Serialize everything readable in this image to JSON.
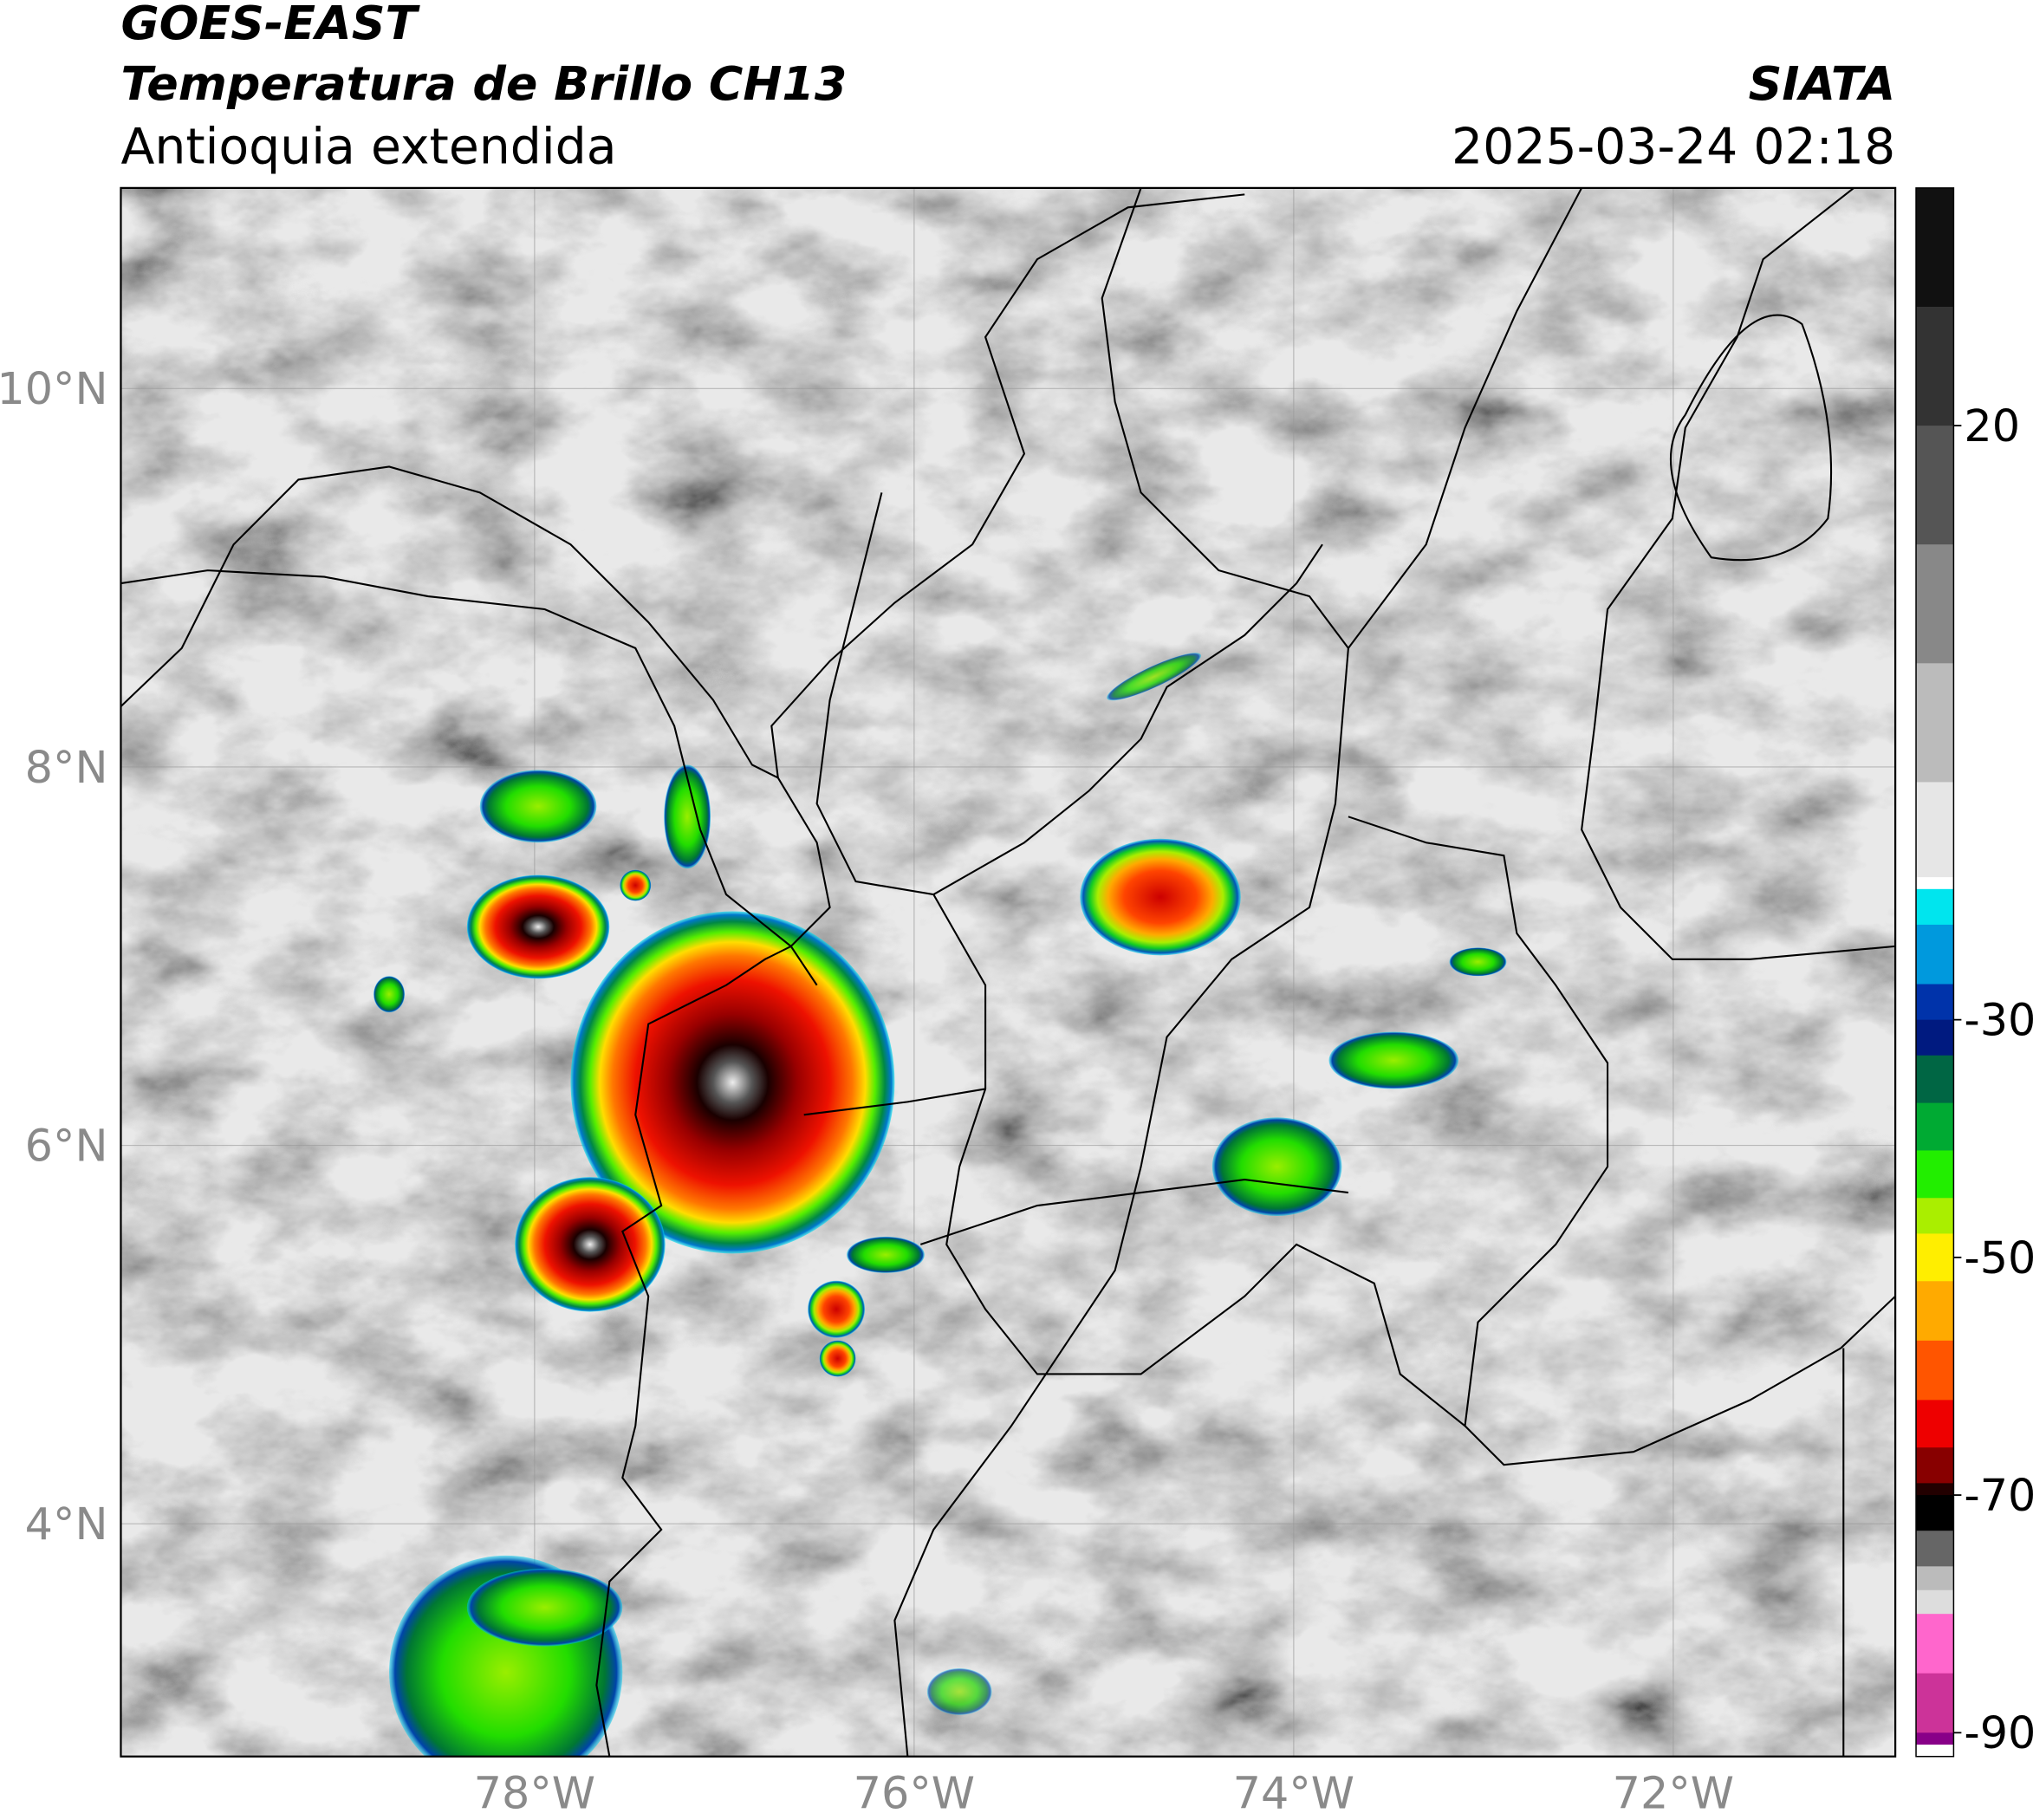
{
  "header": {
    "satellite": "GOES-EAST",
    "product": "Temperatura de Brillo CH13",
    "region": "Antioquia extendida",
    "agency": "SIATA",
    "datetime": "2025-03-24 02:18"
  },
  "map": {
    "lon_range": [
      -80.18,
      -70.83
    ],
    "lat_range": [
      2.77,
      11.06
    ],
    "lon_ticks": [
      {
        "value": -78,
        "label": "78°W"
      },
      {
        "value": -76,
        "label": "76°W"
      },
      {
        "value": -74,
        "label": "74°W"
      },
      {
        "value": -72,
        "label": "72°W"
      }
    ],
    "lat_ticks": [
      {
        "value": 10,
        "label": "10°N"
      },
      {
        "value": 8,
        "label": "8°N"
      },
      {
        "value": 6,
        "label": "6°N"
      },
      {
        "value": 4,
        "label": "4°N"
      }
    ]
  },
  "colorbar": {
    "range": [
      -92,
      40
    ],
    "ticks": [
      20,
      -30,
      -50,
      -70,
      -90
    ],
    "stops": [
      {
        "value": 40,
        "color": "#111111"
      },
      {
        "value": 30,
        "color": "#333333"
      },
      {
        "value": 20,
        "color": "#555555"
      },
      {
        "value": 10,
        "color": "#888888"
      },
      {
        "value": 0,
        "color": "#bbbbbb"
      },
      {
        "value": -10,
        "color": "#e6e6e6"
      },
      {
        "value": -18,
        "color": "#ffffff"
      },
      {
        "value": -19,
        "color": "#00e5ee"
      },
      {
        "value": -22,
        "color": "#0099dd"
      },
      {
        "value": -27,
        "color": "#0033aa"
      },
      {
        "value": -30,
        "color": "#001a80"
      },
      {
        "value": -33,
        "color": "#006644"
      },
      {
        "value": -37,
        "color": "#00aa33"
      },
      {
        "value": -41,
        "color": "#22ee00"
      },
      {
        "value": -45,
        "color": "#aaee00"
      },
      {
        "value": -48,
        "color": "#ffee00"
      },
      {
        "value": -52,
        "color": "#ffaa00"
      },
      {
        "value": -57,
        "color": "#ff5500"
      },
      {
        "value": -62,
        "color": "#ee0000"
      },
      {
        "value": -66,
        "color": "#880000"
      },
      {
        "value": -69,
        "color": "#220000"
      },
      {
        "value": -70,
        "color": "#000000"
      },
      {
        "value": -73,
        "color": "#666666"
      },
      {
        "value": -76,
        "color": "#bbbbbb"
      },
      {
        "value": -78,
        "color": "#dddddd"
      },
      {
        "value": -80,
        "color": "#ff66cc"
      },
      {
        "value": -85,
        "color": "#cc3399"
      },
      {
        "value": -90,
        "color": "#880088"
      },
      {
        "value": -91,
        "color": "#ffffff"
      }
    ]
  }
}
